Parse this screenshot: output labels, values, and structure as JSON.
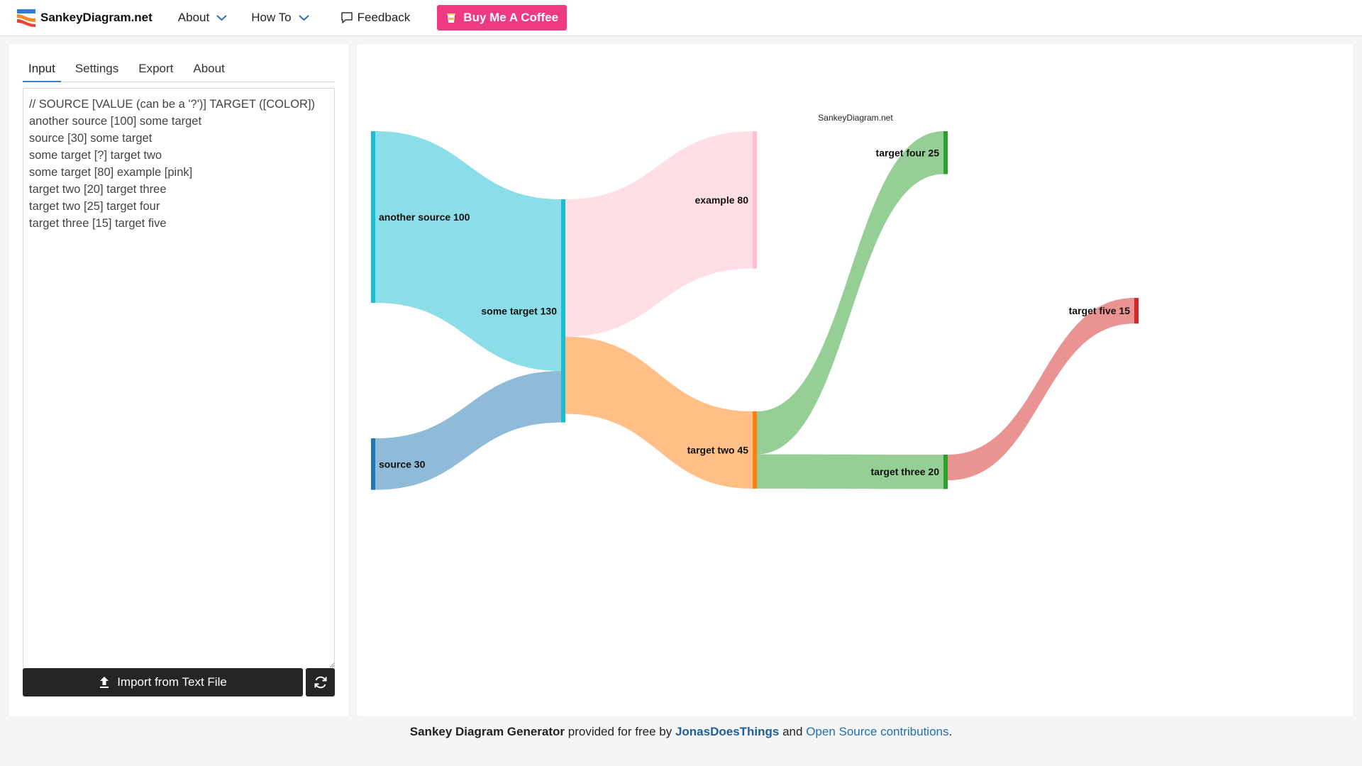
{
  "brand": {
    "name": "SankeyDiagram.net",
    "icon": "sankey-logo-icon"
  },
  "nav": {
    "about_label": "About",
    "howto_label": "How To",
    "feedback_label": "Feedback",
    "coffee_label": "Buy Me A Coffee"
  },
  "left": {
    "tabs": [
      {
        "label": "Input"
      },
      {
        "label": "Settings"
      },
      {
        "label": "Export"
      },
      {
        "label": "About"
      }
    ],
    "editor_text": "// SOURCE [VALUE (can be a '?')] TARGET ([COLOR])\nanother source [100] some target\nsource [30] some target\nsome target [?] target two\nsome target [80] example [pink]\ntarget two [20] target three\ntarget two [25] target four\ntarget three [15] target five",
    "import_label": "Import from Text File"
  },
  "chart": {
    "watermark": "SankeyDiagram.net",
    "colors": {
      "cyan": "#17becf",
      "blue": "#1f77b4",
      "pink": "#ffc0cb",
      "orange": "#ff7f0e",
      "green": "#2ca02c",
      "red": "#d62728"
    }
  },
  "chart_data": {
    "type": "sankey",
    "nodes": [
      {
        "id": "another source",
        "value": 100,
        "label": "another source 100",
        "color": "#17becf"
      },
      {
        "id": "source",
        "value": 30,
        "label": "source 30",
        "color": "#1f77b4"
      },
      {
        "id": "some target",
        "value": 130,
        "label": "some target 130",
        "color": "#17becf"
      },
      {
        "id": "example",
        "value": 80,
        "label": "example 80",
        "color": "#ffc0cb"
      },
      {
        "id": "target two",
        "value": 45,
        "label": "target two 45",
        "color": "#ff7f0e"
      },
      {
        "id": "target four",
        "value": 25,
        "label": "target four 25",
        "color": "#2ca02c"
      },
      {
        "id": "target three",
        "value": 20,
        "label": "target three 20",
        "color": "#2ca02c"
      },
      {
        "id": "target five",
        "value": 15,
        "label": "target five 15",
        "color": "#d62728"
      }
    ],
    "links": [
      {
        "source": "another source",
        "target": "some target",
        "value": 100
      },
      {
        "source": "source",
        "target": "some target",
        "value": 30
      },
      {
        "source": "some target",
        "target": "example",
        "value": 80
      },
      {
        "source": "some target",
        "target": "target two",
        "value": 45
      },
      {
        "source": "target two",
        "target": "target four",
        "value": 25
      },
      {
        "source": "target two",
        "target": "target three",
        "value": 20
      },
      {
        "source": "target three",
        "target": "target five",
        "value": 15
      }
    ]
  },
  "footer": {
    "title": "Sankey Diagram Generator",
    "text1": " provided for free by ",
    "author": "JonasDoesThings",
    "text2": " and ",
    "oss": "Open Source contributions",
    "end": "."
  }
}
